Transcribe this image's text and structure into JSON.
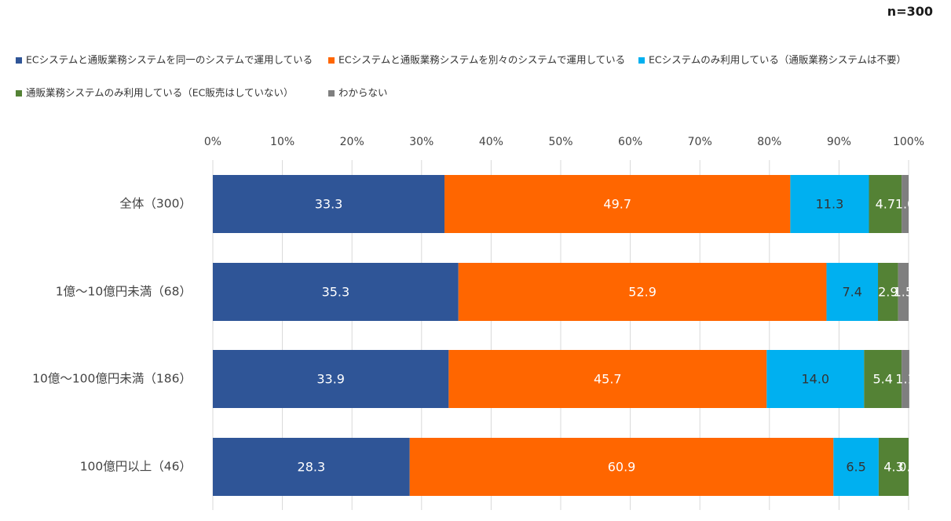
{
  "chart_data": {
    "type": "bar",
    "orientation": "horizontal",
    "stacked": "percent",
    "annotation": "n=300",
    "categories": [
      "全体（300）",
      "1億～10億円未満（68）",
      "10億～100億円未満（186）",
      "100億円以上（46）"
    ],
    "series": [
      {
        "name": "ECシステムと通販業務システムを同一のシステムで運用している",
        "color": "#2f5597",
        "values": [
          33.3,
          35.3,
          33.9,
          28.3
        ],
        "labels": [
          "33.3",
          "35.3",
          "33.9",
          "28.3"
        ],
        "label_color": "#ffffff"
      },
      {
        "name": "ECシステムと通販業務システムを別々のシステムで運用している",
        "color": "#ff6600",
        "values": [
          49.7,
          52.9,
          45.7,
          60.9
        ],
        "labels": [
          "49.7",
          "52.9",
          "45.7",
          "60.9"
        ],
        "label_color": "#ffffff"
      },
      {
        "name": "ECシステムのみ利用している（通販業務システムは不要）",
        "color": "#00b0f0",
        "values": [
          11.3,
          7.4,
          14.0,
          6.5
        ],
        "labels": [
          "11.3",
          "7.4",
          "14.0",
          "6.5"
        ],
        "label_color": "#333333"
      },
      {
        "name": "通販業務システムのみ利用している（EC販売はしていない）",
        "color": "#548235",
        "values": [
          4.7,
          2.9,
          5.4,
          4.3
        ],
        "labels": [
          "4.7",
          "2.9",
          "5.4",
          "4.3"
        ],
        "label_color": "#ffffff"
      },
      {
        "name": "わからない",
        "color": "#7f7f7f",
        "values": [
          1.0,
          1.5,
          1.1,
          0.0
        ],
        "labels": [
          "1.0",
          "1.5",
          "1.1",
          "0.0"
        ],
        "label_color": "#ffffff"
      }
    ],
    "x_ticks": [
      "0%",
      "10%",
      "20%",
      "30%",
      "40%",
      "50%",
      "60%",
      "70%",
      "80%",
      "90%",
      "100%"
    ],
    "xlim": [
      0,
      100
    ],
    "grid": true,
    "legend_position": "top"
  }
}
